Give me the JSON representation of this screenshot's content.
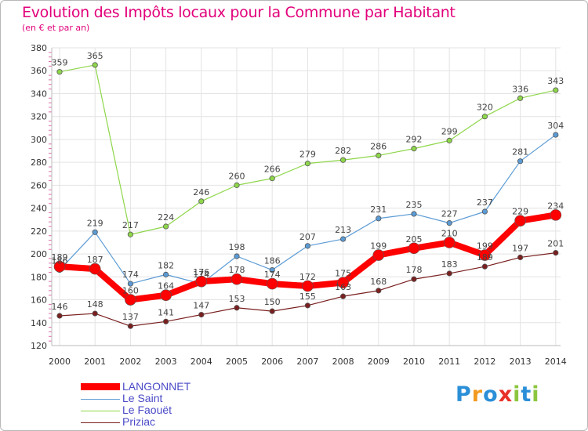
{
  "header": {
    "title": "Evolution des Impôts locaux pour la Commune par Habitant",
    "subtitle": "(en € et par an)"
  },
  "logo": {
    "text": "Proxiti",
    "letters": [
      "P",
      "r",
      "o",
      "x",
      "i",
      "t",
      "i"
    ],
    "letter_colors": [
      "#2b8fd8",
      "#f29a1f",
      "#2b8fd8",
      "#e8322a",
      "#8cc63f",
      "#2b8fd8",
      "#8cc63f"
    ]
  },
  "chart_data": {
    "type": "line",
    "title": "Evolution des Impôts locaux pour la Commune par Habitant",
    "subtitle": "(en € et par an)",
    "x": [
      2000,
      2001,
      2002,
      2003,
      2004,
      2005,
      2006,
      2007,
      2008,
      2009,
      2010,
      2011,
      2012,
      2013,
      2014
    ],
    "xlabel": "",
    "ylabel": "",
    "ylim": [
      120,
      380
    ],
    "yticks": [
      120,
      140,
      160,
      180,
      200,
      220,
      240,
      260,
      280,
      300,
      320,
      340,
      360,
      380
    ],
    "grid": true,
    "legend_position": "bottom-left",
    "series": [
      {
        "name": "LANGONNET",
        "color": "#ff0000",
        "values": [
          189,
          187,
          160,
          164,
          176,
          178,
          174,
          172,
          175,
          199,
          205,
          210,
          199,
          229,
          234
        ],
        "labels": [
          "189",
          "187",
          "160",
          "164",
          "176",
          "178",
          "174",
          "172",
          "175",
          "199",
          "205",
          "210",
          "199",
          "229",
          "234"
        ]
      },
      {
        "name": "Le Saint",
        "color": "#5b9bd5",
        "values": [
          186,
          219,
          174,
          182,
          174,
          198,
          186,
          207,
          213,
          231,
          235,
          227,
          237,
          281,
          304
        ],
        "labels": [
          "186",
          "219",
          "174",
          "182",
          "174",
          "198",
          "186",
          "207",
          "213",
          "231",
          "235",
          "227",
          "237",
          "281",
          "304"
        ]
      },
      {
        "name": "Le Faouët",
        "color": "#8ed64a",
        "values": [
          359,
          365,
          217,
          224,
          246,
          260,
          266,
          279,
          282,
          286,
          292,
          299,
          320,
          336,
          343
        ],
        "labels": [
          "359",
          "365",
          "217",
          "224",
          "246",
          "260",
          "266",
          "279",
          "282",
          "286",
          "292",
          "299",
          "320",
          "336",
          "343"
        ]
      },
      {
        "name": "Priziac",
        "color": "#7a1f1f",
        "values": [
          146,
          148,
          137,
          141,
          147,
          153,
          150,
          155,
          163,
          168,
          178,
          183,
          189,
          197,
          201
        ],
        "labels": [
          "146",
          "148",
          "137",
          "141",
          "147",
          "153",
          "150",
          "155",
          "163",
          "168",
          "178",
          "183",
          "189",
          "197",
          "201"
        ]
      }
    ]
  }
}
